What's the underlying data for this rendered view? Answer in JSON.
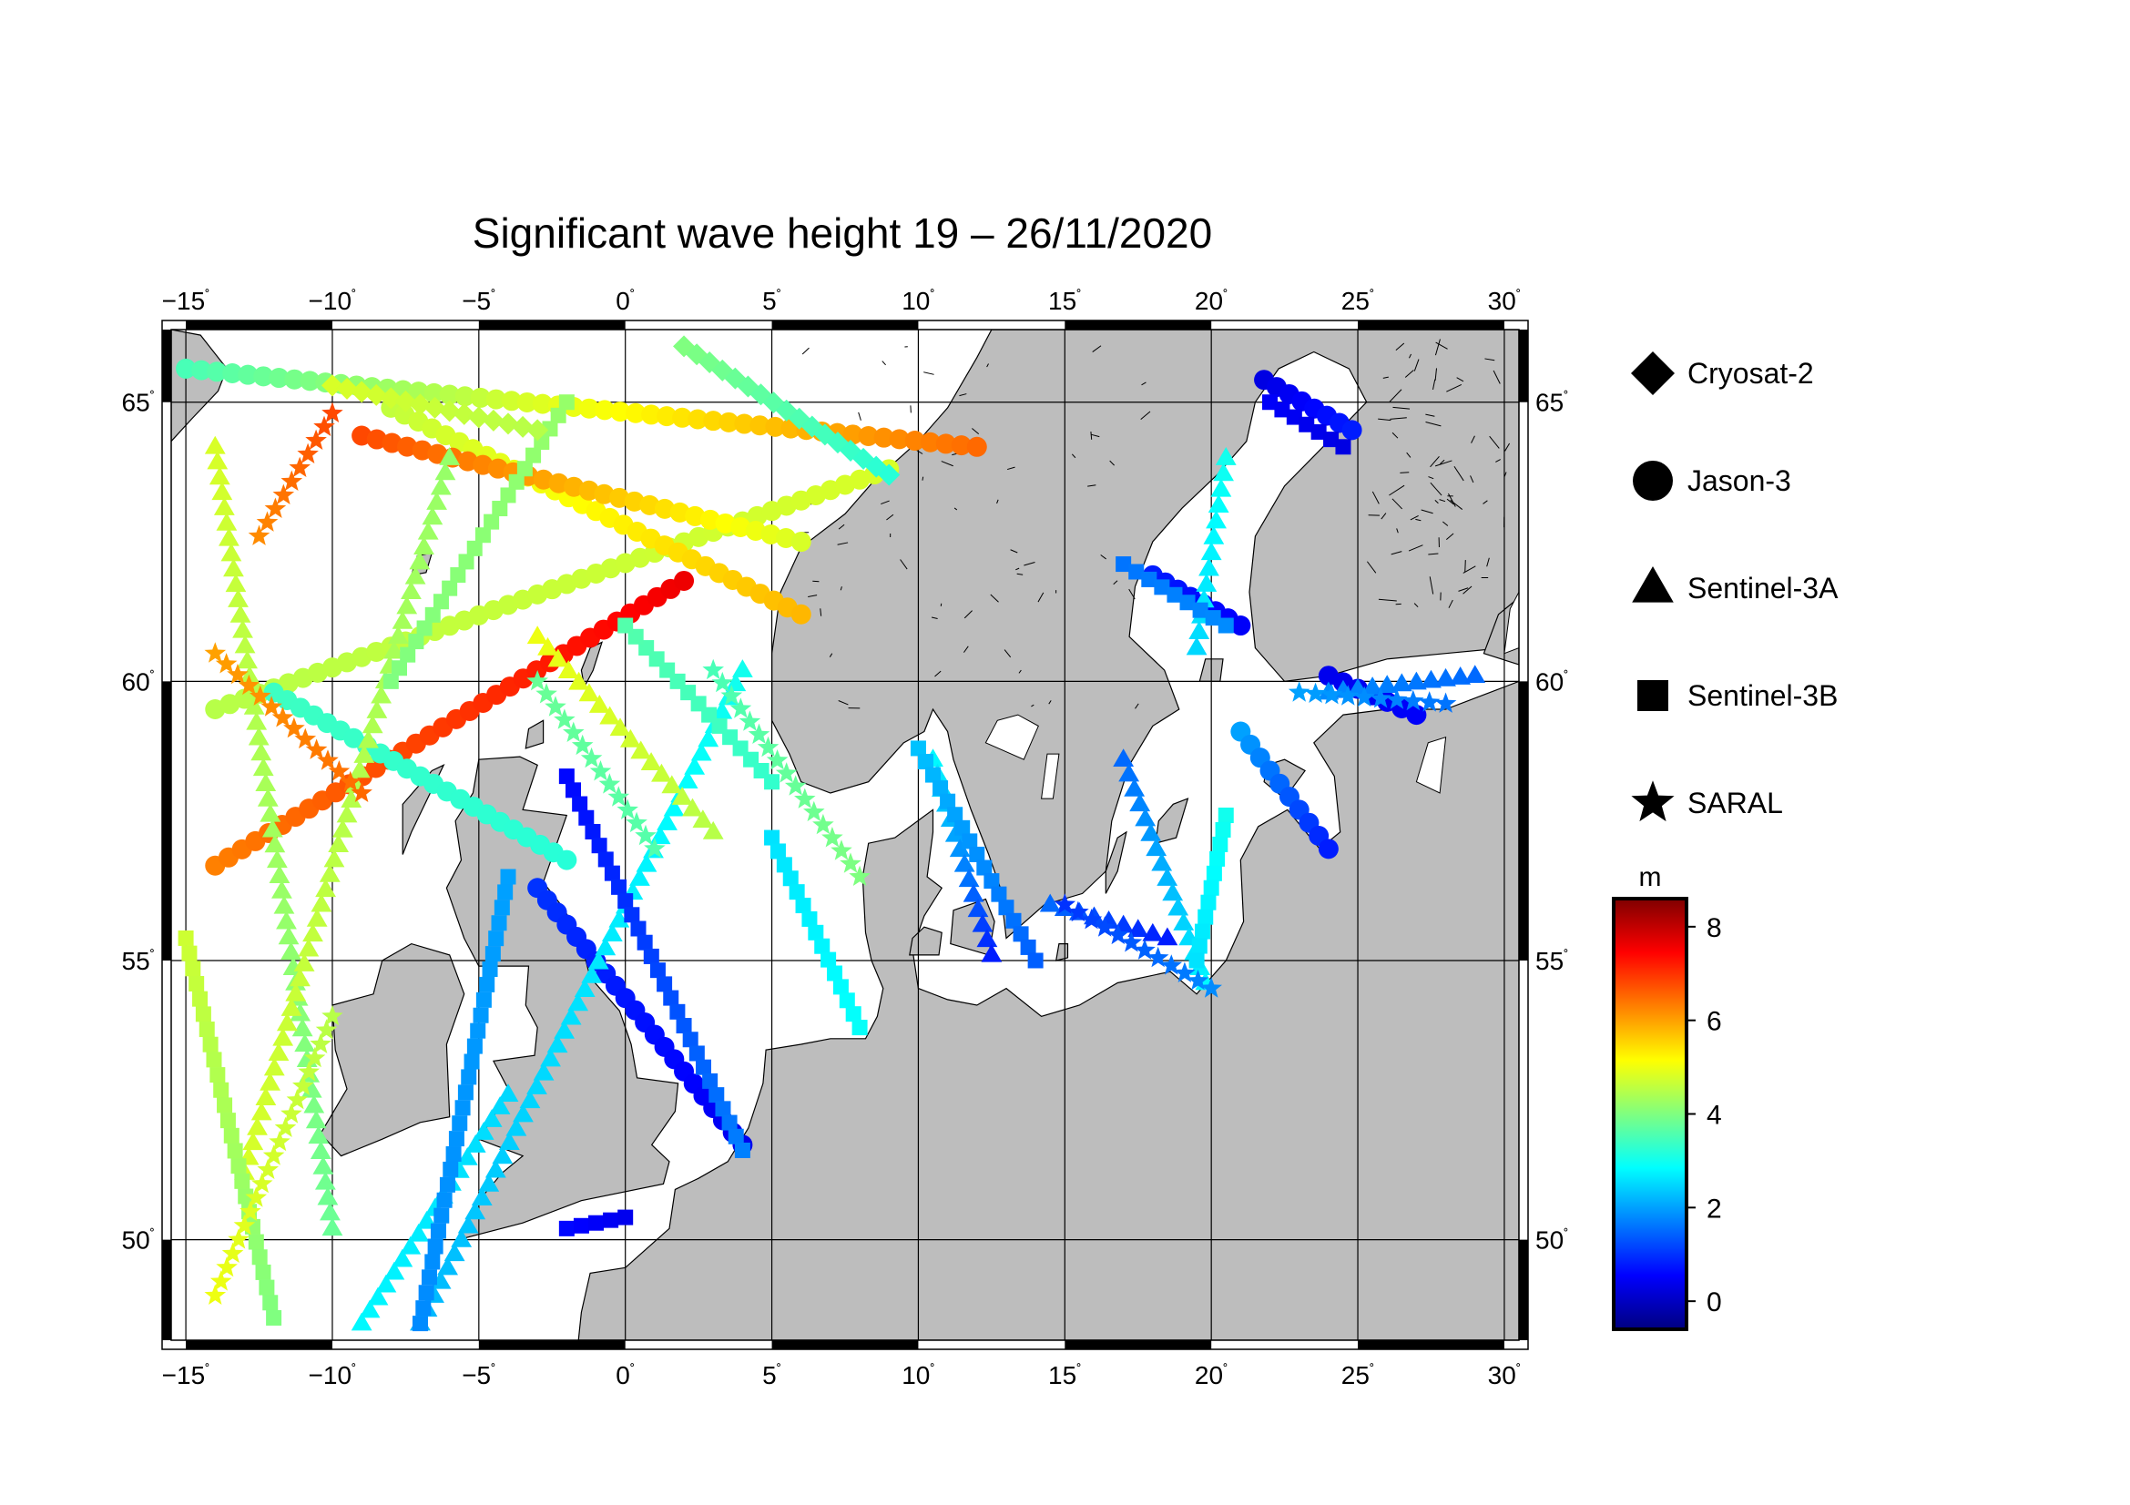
{
  "title": "Significant wave height 19 – 26/11/2020",
  "map": {
    "lon_range": [
      -15.5,
      30.5
    ],
    "lat_range": [
      48.2,
      66.3
    ],
    "lon_ticks": [
      {
        "value": -15,
        "label": "−15"
      },
      {
        "value": -10,
        "label": "−10"
      },
      {
        "value": -5,
        "label": "−5"
      },
      {
        "value": 0,
        "label": "0"
      },
      {
        "value": 5,
        "label": "5"
      },
      {
        "value": 10,
        "label": "10"
      },
      {
        "value": 15,
        "label": "15"
      },
      {
        "value": 20,
        "label": "20"
      },
      {
        "value": 25,
        "label": "25"
      },
      {
        "value": 30,
        "label": "30"
      }
    ],
    "lat_ticks": [
      {
        "value": 50,
        "label": "50"
      },
      {
        "value": 55,
        "label": "55"
      },
      {
        "value": 60,
        "label": "60"
      },
      {
        "value": 65,
        "label": "65"
      }
    ],
    "degree_symbol": "˚",
    "grid": true,
    "land_color": "#bdbdbd",
    "sea_color": "#ffffff"
  },
  "legend": {
    "placement": "right",
    "items": [
      {
        "label": "Cryosat-2",
        "marker": "diamond"
      },
      {
        "label": "Jason-3",
        "marker": "circle"
      },
      {
        "label": "Sentinel-3A",
        "marker": "triangle"
      },
      {
        "label": "Sentinel-3B",
        "marker": "square"
      },
      {
        "label": "SARAL",
        "marker": "star"
      }
    ]
  },
  "colorbar": {
    "unit": "m",
    "min": -0.6,
    "max": 8.6,
    "ticks": [
      {
        "value": 0,
        "label": "0"
      },
      {
        "value": 2,
        "label": "2"
      },
      {
        "value": 4,
        "label": "4"
      },
      {
        "value": 6,
        "label": "6"
      },
      {
        "value": 8,
        "label": "8"
      }
    ],
    "colormap": "jet"
  },
  "chart_data": {
    "type": "scatter",
    "title": "Significant wave height 19 – 26/11/2020",
    "xlabel": "",
    "ylabel": "",
    "xlim": [
      -15.5,
      30.5
    ],
    "ylim": [
      48.2,
      66.3
    ],
    "value_unit": "m",
    "series": [
      {
        "name": "Jason-3",
        "marker": "circle",
        "tracks": [
          {
            "start": [
              -15,
              65.6
            ],
            "end": [
              12,
              64.2
            ],
            "v_start": 3.5,
            "v_end": 6.5
          },
          {
            "start": [
              -14,
              59.5
            ],
            "end": [
              9,
              63.8
            ],
            "v_start": 4.5,
            "v_end": 4.8
          },
          {
            "start": [
              -8,
              64.9
            ],
            "end": [
              6,
              61.2
            ],
            "v_start": 4.6,
            "v_end": 5.8
          },
          {
            "start": [
              -14,
              56.7
            ],
            "end": [
              2,
              61.8
            ],
            "v_start": 6.3,
            "v_end": 7.6
          },
          {
            "start": [
              -9,
              64.4
            ],
            "end": [
              6,
              62.5
            ],
            "v_start": 6.8,
            "v_end": 4.8
          },
          {
            "start": [
              -12,
              59.8
            ],
            "end": [
              -2,
              56.8
            ],
            "v_start": 3.4,
            "v_end": 3.2
          },
          {
            "start": [
              -3,
              56.3
            ],
            "end": [
              4,
              51.7
            ],
            "v_start": 1.0,
            "v_end": 0.4
          },
          {
            "start": [
              21.8,
              65.4
            ],
            "end": [
              24.8,
              64.5
            ],
            "v_start": 0.3,
            "v_end": 0.8
          },
          {
            "start": [
              18,
              61.9
            ],
            "end": [
              21,
              61.0
            ],
            "v_start": 0.8,
            "v_end": 0.5
          },
          {
            "start": [
              21,
              59.1
            ],
            "end": [
              24,
              57.0
            ],
            "v_start": 2.0,
            "v_end": 0.8
          },
          {
            "start": [
              24,
              60.1
            ],
            "end": [
              27,
              59.4
            ],
            "v_start": 0.4,
            "v_end": 0.5
          }
        ]
      },
      {
        "name": "Sentinel-3A",
        "marker": "triangle",
        "tracks": [
          {
            "start": [
              -14,
              64.2
            ],
            "end": [
              -10,
              50.2
            ],
            "v_start": 4.8,
            "v_end": 3.8
          },
          {
            "start": [
              -6,
              64.0
            ],
            "end": [
              -13,
              51.2
            ],
            "v_start": 4.2,
            "v_end": 4.8
          },
          {
            "start": [
              4,
              60.2
            ],
            "end": [
              -7,
              48.5
            ],
            "v_start": 3.0,
            "v_end": 2.2
          },
          {
            "start": [
              -3,
              60.8
            ],
            "end": [
              3,
              57.3
            ],
            "v_start": 5.0,
            "v_end": 4.5
          },
          {
            "start": [
              -4,
              52.6
            ],
            "end": [
              -9,
              48.5
            ],
            "v_start": 2.5,
            "v_end": 2.8
          },
          {
            "start": [
              10.5,
              58.6
            ],
            "end": [
              12.5,
              55.1
            ],
            "v_start": 2.8,
            "v_end": 0.8
          },
          {
            "start": [
              17,
              58.6
            ],
            "end": [
              19.8,
              54.6
            ],
            "v_start": 1.5,
            "v_end": 2.8
          },
          {
            "start": [
              20.5,
              64.0
            ],
            "end": [
              19.5,
              60.6
            ],
            "v_start": 3.0,
            "v_end": 2.5
          },
          {
            "start": [
              24,
              59.8
            ],
            "end": [
              29,
              60.1
            ],
            "v_start": 1.8,
            "v_end": 1.5
          },
          {
            "start": [
              14.5,
              56.0
            ],
            "end": [
              18.5,
              55.4
            ],
            "v_start": 1.5,
            "v_end": 0.8
          }
        ]
      },
      {
        "name": "Sentinel-3B",
        "marker": "square",
        "tracks": [
          {
            "start": [
              -15,
              55.4
            ],
            "end": [
              -12,
              48.6
            ],
            "v_start": 4.7,
            "v_end": 4.0
          },
          {
            "start": [
              -2,
              58.3
            ],
            "end": [
              4,
              51.6
            ],
            "v_start": 0.6,
            "v_end": 1.7
          },
          {
            "start": [
              -2,
              65.0
            ],
            "end": [
              -8,
              60.0
            ],
            "v_start": 4.2,
            "v_end": 4.0
          },
          {
            "start": [
              5,
              58.2
            ],
            "end": [
              0,
              61.0
            ],
            "v_start": 3.3,
            "v_end": 3.6
          },
          {
            "start": [
              -4,
              56.5
            ],
            "end": [
              -7,
              48.5
            ],
            "v_start": 2.0,
            "v_end": 1.8
          },
          {
            "start": [
              -2,
              50.2
            ],
            "end": [
              0,
              50.4
            ],
            "v_start": 0.6,
            "v_end": 0.4
          },
          {
            "start": [
              17,
              62.1
            ],
            "end": [
              20.5,
              61.0
            ],
            "v_start": 1.6,
            "v_end": 1.8
          },
          {
            "start": [
              20.5,
              57.6
            ],
            "end": [
              19.5,
              55.0
            ],
            "v_start": 3.0,
            "v_end": 2.6
          },
          {
            "start": [
              10,
              58.8
            ],
            "end": [
              14,
              55.0
            ],
            "v_start": 2.3,
            "v_end": 1.4
          },
          {
            "start": [
              5,
              57.2
            ],
            "end": [
              8,
              53.8
            ],
            "v_start": 2.6,
            "v_end": 2.9
          },
          {
            "start": [
              22,
              65.0
            ],
            "end": [
              24.5,
              64.2
            ],
            "v_start": 0.5,
            "v_end": 0.3
          }
        ]
      },
      {
        "name": "SARAL",
        "marker": "star",
        "tracks": [
          {
            "start": [
              -14,
              60.5
            ],
            "end": [
              -9,
              58.0
            ],
            "v_start": 6.0,
            "v_end": 6.5
          },
          {
            "start": [
              -10,
              64.8
            ],
            "end": [
              -12.5,
              62.6
            ],
            "v_start": 6.8,
            "v_end": 6.2
          },
          {
            "start": [
              3,
              60.2
            ],
            "end": [
              8,
              56.5
            ],
            "v_start": 3.5,
            "v_end": 4.0
          },
          {
            "start": [
              -3,
              60.0
            ],
            "end": [
              1,
              57.0
            ],
            "v_start": 3.8,
            "v_end": 3.6
          },
          {
            "start": [
              -10,
              54.0
            ],
            "end": [
              -14,
              49.0
            ],
            "v_start": 4.5,
            "v_end": 5.0
          },
          {
            "start": [
              15,
              56.0
            ],
            "end": [
              20,
              54.5
            ],
            "v_start": 1.0,
            "v_end": 1.8
          },
          {
            "start": [
              23,
              59.8
            ],
            "end": [
              28,
              59.6
            ],
            "v_start": 2.0,
            "v_end": 1.6
          }
        ]
      },
      {
        "name": "Cryosat-2",
        "marker": "diamond",
        "tracks": [
          {
            "start": [
              2,
              66.0
            ],
            "end": [
              9,
              63.7
            ],
            "v_start": 4.0,
            "v_end": 3.2
          },
          {
            "start": [
              -10,
              65.3
            ],
            "end": [
              -3,
              64.5
            ],
            "v_start": 4.8,
            "v_end": 4.5
          }
        ]
      }
    ]
  }
}
